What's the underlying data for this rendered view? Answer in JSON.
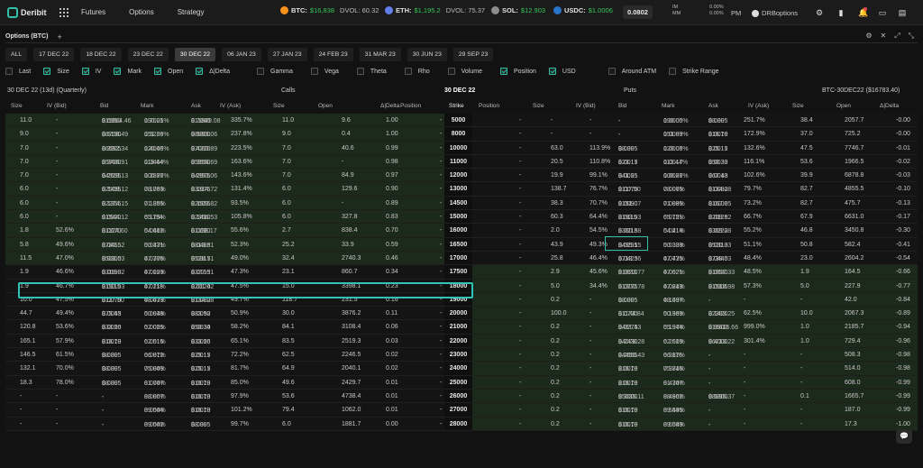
{
  "app": {
    "name": "Deribit",
    "nav": [
      "Futures",
      "Options",
      "Strategy"
    ]
  },
  "tickers": [
    {
      "sym": "BTC:",
      "price": "$16,838",
      "extra": "DVOL: 60.32",
      "color": "#f7931a"
    },
    {
      "sym": "ETH:",
      "price": "$1,195.2",
      "extra": "DVOL: 75.37",
      "color": "#627eea"
    },
    {
      "sym": "SOL:",
      "price": "$12.903",
      "extra": "",
      "color": "#8d8d8d"
    },
    {
      "sym": "USDC:",
      "price": "$1.0006",
      "extra": "",
      "color": "#2775ca"
    }
  ],
  "eth_btc": "0.0802",
  "im_label": "IM",
  "mm_label": "MM",
  "im_val": "0.00%",
  "mm_val": "0.00%",
  "pm": "PM",
  "user": "DRBoptions",
  "panel": {
    "title": "Options (BTC)",
    "plus": "+"
  },
  "expiries": [
    "ALL",
    "17 DEC 22",
    "18 DEC 22",
    "23 DEC 22",
    "30 DEC 22",
    "06 JAN 23",
    "27 JAN 23",
    "24 FEB 23",
    "31 MAR 23",
    "30 JUN 23",
    "29 SEP 23"
  ],
  "active_expiry": "30 DEC 22",
  "columns": [
    {
      "label": "Last",
      "on": false
    },
    {
      "label": "Size",
      "on": true
    },
    {
      "label": "IV",
      "on": true
    },
    {
      "label": "Mark",
      "on": true
    },
    {
      "label": "Open",
      "on": true
    },
    {
      "label": "Δ|Delta",
      "on": true
    },
    {
      "label": "Gamma",
      "on": false
    },
    {
      "label": "Vega",
      "on": false
    },
    {
      "label": "Theta",
      "on": false
    },
    {
      "label": "Rho",
      "on": false
    },
    {
      "label": "Volume",
      "on": false
    },
    {
      "label": "Position",
      "on": true
    },
    {
      "label": "USD",
      "on": true
    },
    {
      "label": "Around ATM",
      "on": false
    },
    {
      "label": "Strike Range",
      "on": false
    }
  ],
  "section": {
    "expiry": "30 DEC 22 (13d) (Quarterly)",
    "calls": "Calls",
    "mid": "30 DEC 22",
    "puts": "Puts",
    "future": "BTC-30DEC22 ($16783.40)"
  },
  "headers": {
    "calls": [
      "Size",
      "IV (Bid)",
      "Bid",
      "Mark",
      "Ask",
      "IV (Ask)",
      "Size",
      "Open",
      "Δ|Delta",
      "Position"
    ],
    "strike": "Strike",
    "puts": [
      "Position",
      "Size",
      "IV (Bid)",
      "Bid",
      "Mark",
      "Ask",
      "IV (Ask)",
      "Size",
      "Open",
      "Δ|Delta"
    ]
  },
  "rows": [
    {
      "k": "5000",
      "c": [
        "11.0",
        "-",
        "0.6950",
        "$11664.46",
        "0.7021",
        "190.05%",
        "0.7060",
        "$11849.08",
        "335.7%",
        "11.0",
        "9.6",
        "1.00",
        "-"
      ],
      "p": [
        "-",
        "-",
        "-",
        "-",
        "-",
        "0.0000",
        "190.05%",
        "0.0005",
        "$8.39",
        "251.7%",
        "38.4",
        "2057.7",
        "-0.00"
      ]
    },
    {
      "k": "8000",
      "c": [
        "9.0",
        "-",
        "0.5190",
        "$8708.49",
        "0.5236",
        "151.89%",
        "0.5300",
        "$8893.06",
        "237.8%",
        "9.0",
        "0.4",
        "1.00",
        "-"
      ],
      "p": [
        "-",
        "-",
        "-",
        "-",
        "-",
        "0.0003",
        "151.89%",
        "0.0010",
        "$16.78",
        "172.9%",
        "37.0",
        "725.2",
        "-0.00"
      ]
    },
    {
      "k": "10000",
      "c": [
        "7.0",
        "-",
        "0.3905",
        "$6552.34",
        "0.4048",
        "120.05%",
        "0.4220",
        "$7080.89",
        "223.5%",
        "7.0",
        "40.6",
        "0.99",
        "-"
      ],
      "p": [
        "-",
        "63.0",
        "113.9%",
        "0.0005",
        "$8.39",
        "0.0008",
        "120.05%",
        "0.0015",
        "$25.17",
        "132.6%",
        "47.5",
        "7746.7",
        "-0.01"
      ]
    },
    {
      "k": "11000",
      "c": [
        "7.0",
        "-",
        "0.3400",
        "$5706.91",
        "0.3464",
        "113.44%",
        "0.3550",
        "$5958.69",
        "163.6%",
        "7.0",
        "-",
        "0.98",
        "-"
      ],
      "p": [
        "-",
        "20.5",
        "110.8%",
        "0.0015",
        "$23.17",
        "0.0017",
        "113.44%",
        "0.0030",
        "$50.33",
        "116.1%",
        "53.6",
        "1966.5",
        "-0.02"
      ]
    },
    {
      "k": "12000",
      "c": [
        "7.0",
        "-",
        "0.2695",
        "$4523.13",
        "0.2877",
        "100.86%",
        "0.2975",
        "$4993.06",
        "143.6%",
        "7.0",
        "84.9",
        "0.97",
        "-"
      ],
      "p": [
        "-",
        "19.9",
        "99.1%",
        "0.0025",
        "$41.95",
        "0.0027",
        "100.86%",
        "0.0040",
        "$67.13",
        "102.6%",
        "39.9",
        "6878.8",
        "-0.03"
      ]
    },
    {
      "k": "13000",
      "c": [
        "6.0",
        "-",
        "0.1495",
        "$2509.12",
        "0.1733",
        "78.06%",
        "0.1975",
        "$3314.72",
        "131.4%",
        "6.0",
        "129.6",
        "0.90",
        "-"
      ],
      "p": [
        "-",
        "138.7",
        "76.7%",
        "0.0070",
        "$117.50",
        "0.0075",
        "78.06%",
        "0.0080",
        "$134.28",
        "79.7%",
        "82.7",
        "4855.5",
        "-0.10"
      ]
    },
    {
      "k": "14500",
      "c": [
        "6.0",
        "-",
        "0.1355",
        "$2274.15",
        "0.1355",
        "71.88%",
        "0.1555",
        "$2609.82",
        "93.5%",
        "6.0",
        "-",
        "0.89",
        "-"
      ],
      "p": [
        "-",
        "38.3",
        "70.7%",
        "0.0090",
        "$151.07",
        "0.0095",
        "71.88%",
        "0.0100",
        "$167.85",
        "73.2%",
        "82.7",
        "475.7",
        "-0.13"
      ]
    },
    {
      "k": "15000",
      "c": [
        "6.0",
        "-",
        "0.0920",
        "$1544.12",
        "0.1184",
        "65.75%",
        "0.1410",
        "$2366.53",
        "105.8%",
        "6.0",
        "327.8",
        "0.83",
        "-"
      ],
      "p": [
        "-",
        "60.3",
        "64.4%",
        "0.0115",
        "$193.03",
        "0.0121",
        "65.75%",
        "0.0125",
        "$209.82",
        "66.7%",
        "67.9",
        "6631.0",
        "-0.17"
      ]
    },
    {
      "k": "16000",
      "c": [
        "1.8",
        "52.6%",
        "0.0670",
        "$1124.60",
        "0.0682",
        "54.41%",
        "0.0690",
        "$1158.17",
        "55.6%",
        "2.7",
        "838.4",
        "0.70",
        "-"
      ],
      "p": [
        "-",
        "2.0",
        "54.5%",
        "0.0215",
        "$360.88",
        "0.0214",
        "54.41%",
        "0.0220",
        "$369.28",
        "55.2%",
        "46.8",
        "3450.8",
        "-0.30"
      ]
    },
    {
      "k": "16500",
      "c": [
        "5.8",
        "49.6%",
        "0.0465",
        "$780.52",
        "0.0471",
        "50.33%",
        "0.0485",
        "$813.81",
        "52.3%",
        "25.2",
        "33.9",
        "0.59",
        "-"
      ],
      "p": [
        "-",
        "43.9",
        "49.3%",
        "0.0295",
        "$495.15",
        "0.0303",
        "50.33%",
        "0.0310",
        "$520.33",
        "51.1%",
        "50.8",
        "582.4",
        "-0.41"
      ]
    },
    {
      "k": "17000",
      "c": [
        "11.5",
        "47.0%",
        "0.0300",
        "$503.53",
        "0.0306",
        "47.77%",
        "0.0315",
        "$528.71",
        "49.0%",
        "32.4",
        "2740.3",
        "0.46",
        "-"
      ],
      "p": [
        "-",
        "25.8",
        "46.4%",
        "0.0425",
        "$713.36",
        "0.0435",
        "47.77%",
        "0.0440",
        "$738.53",
        "48.4%",
        "23.0",
        "2604.2",
        "-0.54"
      ]
    },
    {
      "k": "17500",
      "c": [
        "1.9",
        "46.6%",
        "0.0190",
        "$318.92",
        "0.0193",
        "47.02%",
        "0.0195",
        "$327.31",
        "47.3%",
        "23.1",
        "860.7",
        "0.34",
        "-"
      ],
      "p": [
        "-",
        "2.9",
        "45.6%",
        "0.0610",
        "$1023.77",
        "0.0621",
        "47.02%",
        "0.0630",
        "$1057.33",
        "48.5%",
        "1.9",
        "164.5",
        "-0.66"
      ]
    },
    {
      "k": "18000",
      "c": [
        "1.9",
        "46.7%",
        "0.0115",
        "$193.03",
        "0.0118",
        "47.21%",
        "0.0120",
        "$201.42",
        "47.5%",
        "15.0",
        "3398.1",
        "0.23",
        "-"
      ],
      "p": [
        "-",
        "5.0",
        "34.4%",
        "0.0775",
        "$1300.78",
        "0.0843",
        "47.21%",
        "0.0905",
        "$1518.98",
        "57.3%",
        "5.0",
        "227.9",
        "-0.77"
      ]
    },
    {
      "k": "19000",
      "c": [
        "10.0",
        "47.5%",
        "0.0070",
        "$117.50",
        "0.0073",
        "48.43%",
        "0.0080",
        "$134.28",
        "49.7%",
        "118.7",
        "231.5",
        "0.16",
        "-"
      ],
      "p": [
        "-",
        "0.2",
        "-",
        "0.0005",
        "$8.39",
        "0.1097",
        "48.43%",
        "-",
        "-",
        "-",
        "-",
        "42.0",
        "-0.84"
      ]
    },
    {
      "k": "20000",
      "c": [
        "44.7",
        "49.4%",
        "0.0045",
        "$75.53",
        "0.0048",
        "50.93%",
        "0.0050",
        "$83.92",
        "50.9%",
        "30.0",
        "3876.2",
        "0.11",
        "-"
      ],
      "p": [
        "-",
        "100.0",
        "-",
        "0.0700",
        "$1174.84",
        "0.1369",
        "50.93%",
        "0.1420",
        "$2383.25",
        "62.5%",
        "10.0",
        "2067.3",
        "-0.89"
      ]
    },
    {
      "k": "21000",
      "c": [
        "120.8",
        "53.6%",
        "0.0020",
        "$33.56",
        "0.0025",
        "52.05%",
        "0.0030",
        "$50.34",
        "58.2%",
        "84.1",
        "3108.4",
        "0.06",
        "-"
      ],
      "p": [
        "-",
        "0.2",
        "-",
        "0.0275",
        "$461.43",
        "0.1944",
        "55.97%",
        "0.9900",
        "$16616.66",
        "999.0%",
        "1.0",
        "2185.7",
        "-0.94"
      ]
    },
    {
      "k": "22000",
      "c": [
        "165.1",
        "57.9%",
        "0.0010",
        "$16.78",
        "0.0016",
        "62.51%",
        "0.0020",
        "$33.56",
        "65.1%",
        "83.5",
        "2519.3",
        "0.03",
        "-"
      ],
      "p": [
        "-",
        "0.2",
        "-",
        "0.2430",
        "$4078.28",
        "0.2609",
        "62.51%",
        "0.4000",
        "$6713.22",
        "301.4%",
        "1.0",
        "729.4",
        "-0.96"
      ]
    },
    {
      "k": "23000",
      "c": [
        "146.5",
        "61.5%",
        "0.0005",
        "$8.39",
        "0.0012",
        "66.87%",
        "0.0015",
        "$25.17",
        "72.2%",
        "62.5",
        "2246.5",
        "0.02",
        "-"
      ],
      "p": [
        "-",
        "0.2",
        "-",
        "0.2655",
        "$4456.43",
        "0.3116",
        "66.87%",
        "-",
        "-",
        "-",
        "-",
        "508.3",
        "-0.98"
      ]
    },
    {
      "k": "24000",
      "c": [
        "132.1",
        "70.0%",
        "0.0005",
        "$8.39",
        "0.0009",
        "75.84%",
        "0.0015",
        "$25.17",
        "81.7%",
        "64.9",
        "2040.1",
        "0.02",
        "-"
      ],
      "p": [
        "-",
        "0.2",
        "-",
        "0.0010",
        "$16.78",
        "0.3716",
        "75.84%",
        "-",
        "-",
        "-",
        "-",
        "514.0",
        "-0.98"
      ]
    },
    {
      "k": "25000",
      "c": [
        "18.3",
        "78.0%",
        "0.0005",
        "$8.39",
        "0.0007",
        "81.74%",
        "0.0010",
        "$16.78",
        "85.0%",
        "49.6",
        "2429.7",
        "0.01",
        "-"
      ],
      "p": [
        "-",
        "0.2",
        "-",
        "0.0010",
        "$16.78",
        "0.4307",
        "81.74%",
        "-",
        "-",
        "-",
        "-",
        "608.0",
        "-0.99"
      ]
    },
    {
      "k": "26000",
      "c": [
        "-",
        "-",
        "-",
        "-",
        "0.0007",
        "88.86%",
        "0.0010",
        "$16.78",
        "97.9%",
        "53.6",
        "4738.4",
        "0.01",
        "-"
      ],
      "p": [
        "-",
        "0.2",
        "-",
        "0.3000",
        "$5035.11",
        "0.4902",
        "88.86%",
        "0.5300",
        "$8895.37",
        "-",
        "0.1",
        "1665.7",
        "-0.99"
      ]
    },
    {
      "k": "27000",
      "c": [
        "-",
        "-",
        "-",
        "-",
        "0.0004",
        "89.54%",
        "0.0010",
        "$16.78",
        "101.2%",
        "79.4",
        "1062.0",
        "0.01",
        "-"
      ],
      "p": [
        "-",
        "0.2",
        "-",
        "0.0010",
        "$16.78",
        "0.5495",
        "89.54%",
        "-",
        "-",
        "-",
        "-",
        "187.0",
        "-0.99"
      ]
    },
    {
      "k": "28000",
      "c": [
        "-",
        "-",
        "-",
        "-",
        "0.0002",
        "89.54%",
        "0.0005",
        "$8.39",
        "99.7%",
        "6.0",
        "1881.7",
        "0.00",
        "-"
      ],
      "p": [
        "-",
        "0.2",
        "-",
        "0.0010",
        "$16.78",
        "0.6089",
        "89.54%",
        "-",
        "-",
        "-",
        "-",
        "17.3",
        "-1.00"
      ]
    }
  ]
}
